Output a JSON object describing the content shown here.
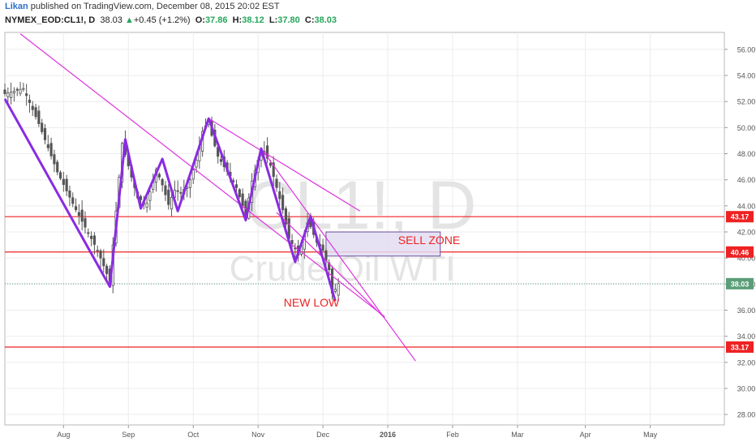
{
  "header": {
    "author": "Likan",
    "published_text": "published on TradingView.com, December 08, 2015 20:02 EST",
    "symbol": "NYMEX_EOD:CL1!, D",
    "last": "38.03",
    "change_arrow": "▲",
    "change": "+0.45 (+1.2%)",
    "o_label": "O:",
    "o_value": "37.86",
    "h_label": "H:",
    "h_value": "38.12",
    "l_label": "L:",
    "l_value": "37.80",
    "c_label": "C:",
    "c_value": "38.03"
  },
  "watermark": {
    "ticker": "CL1!, D",
    "name": "Crude Oil WTI"
  },
  "annotations": {
    "sell_zone": "SELL ZONE",
    "new_low": "NEW LOW"
  },
  "colors": {
    "candle": "#555555",
    "zigzag": "#8a2be2",
    "trendline": "#dd33dd",
    "level": "#ee2222",
    "last_price": "#5a9e78",
    "sell_zone_fill": "#e2ddf2",
    "sell_zone_border": "#6a4c9c"
  },
  "chart_data": {
    "type": "candlestick",
    "x_unit": "trading day index",
    "xlim": [
      0,
      233
    ],
    "ylim": [
      27.2,
      57.3
    ],
    "x_ticks": [
      {
        "x": 19,
        "label": "Aug"
      },
      {
        "x": 40,
        "label": "Sep"
      },
      {
        "x": 61,
        "label": "Oct"
      },
      {
        "x": 82,
        "label": "Nov"
      },
      {
        "x": 103,
        "label": "Dec"
      },
      {
        "x": 124,
        "label": "2016"
      },
      {
        "x": 145,
        "label": "Feb"
      },
      {
        "x": 166,
        "label": "Mar"
      },
      {
        "x": 188,
        "label": "Apr"
      },
      {
        "x": 209,
        "label": "May"
      }
    ],
    "y_ticks": [
      "28.00",
      "30.00",
      "32.00",
      "34.00",
      "36.00",
      "38.00",
      "40.00",
      "42.00",
      "44.00",
      "46.00",
      "48.00",
      "50.00",
      "52.00",
      "54.00",
      "56.00"
    ],
    "close_anchors": [
      [
        0,
        52.6
      ],
      [
        6,
        53.0
      ],
      [
        11,
        50.3
      ],
      [
        17,
        46.6
      ],
      [
        23,
        43.7
      ],
      [
        30,
        40.6
      ],
      [
        34,
        38.2
      ],
      [
        35,
        41.0
      ],
      [
        38,
        48.8
      ],
      [
        41,
        46.2
      ],
      [
        43,
        44.6
      ],
      [
        46,
        44.2
      ],
      [
        49,
        46.8
      ],
      [
        51,
        45.6
      ],
      [
        53,
        44.1
      ],
      [
        55,
        45.2
      ],
      [
        58,
        44.9
      ],
      [
        60,
        46.0
      ],
      [
        62,
        47.5
      ],
      [
        64,
        49.7
      ],
      [
        66,
        50.5
      ],
      [
        67,
        49.4
      ],
      [
        69,
        47.8
      ],
      [
        71,
        47.0
      ],
      [
        73,
        46.3
      ],
      [
        75,
        45.4
      ],
      [
        77,
        44.0
      ],
      [
        78,
        43.3
      ],
      [
        80,
        45.9
      ],
      [
        82,
        47.5
      ],
      [
        84,
        48.2
      ],
      [
        86,
        47.1
      ],
      [
        88,
        45.4
      ],
      [
        90,
        43.7
      ],
      [
        92,
        41.5
      ],
      [
        94,
        40.7
      ],
      [
        95,
        40.2
      ],
      [
        97,
        41.8
      ],
      [
        98,
        42.7
      ],
      [
        99,
        42.4
      ],
      [
        101,
        41.2
      ],
      [
        103,
        40.6
      ],
      [
        104,
        39.8
      ],
      [
        105,
        39.1
      ],
      [
        106,
        37.3
      ],
      [
        107,
        37.6
      ],
      [
        108,
        38.03
      ]
    ],
    "zigzag": [
      [
        0,
        52.2
      ],
      [
        34,
        37.8
      ],
      [
        39,
        49.1
      ],
      [
        44,
        43.8
      ],
      [
        51,
        47.6
      ],
      [
        56,
        43.6
      ],
      [
        66,
        50.7
      ],
      [
        78,
        42.9
      ],
      [
        83,
        48.4
      ],
      [
        94,
        39.7
      ],
      [
        99,
        43.2
      ],
      [
        107,
        36.7
      ]
    ],
    "trendlines": [
      [
        [
          5,
          57.2
        ],
        [
          123,
          35.5
        ]
      ],
      [
        [
          66,
          50.7
        ],
        [
          115,
          43.6
        ]
      ],
      [
        [
          83,
          48.4
        ],
        [
          133,
          32.1
        ]
      ],
      [
        [
          88,
          43.5
        ],
        [
          123,
          35.4
        ]
      ]
    ],
    "levels": [
      {
        "value": 43.17,
        "label": "43.17"
      },
      {
        "value": 40.46,
        "label": "40.46"
      },
      {
        "value": 33.17,
        "label": "33.17"
      }
    ],
    "last_price": {
      "value": 38.03,
      "label": "38.03"
    },
    "sell_zone": {
      "x_start": 104,
      "x_end": 141,
      "y_low": 40.15,
      "y_high": 42.0
    },
    "grid": true
  }
}
